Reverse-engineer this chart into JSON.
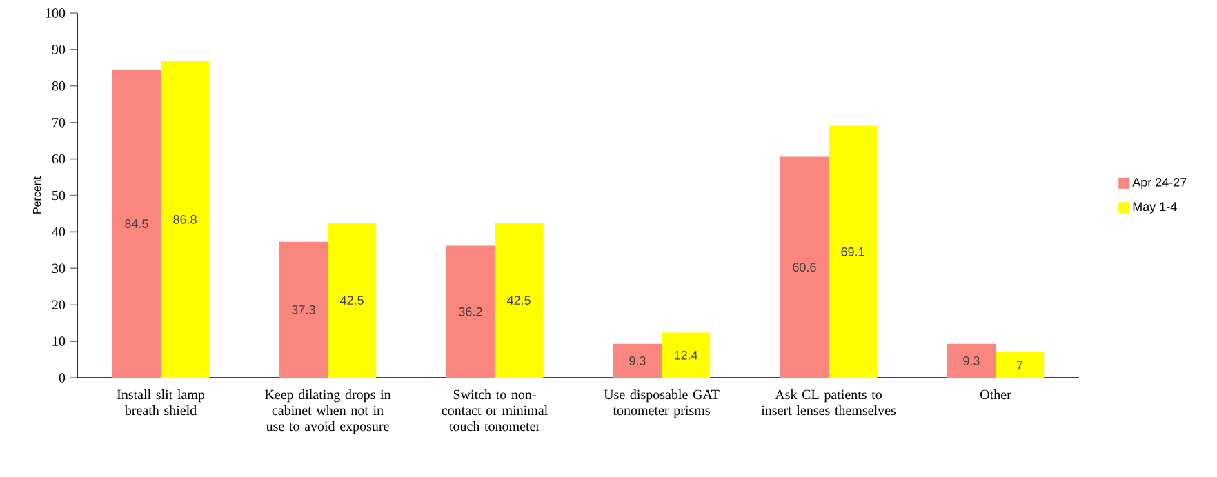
{
  "chart_data": {
    "type": "bar",
    "ylabel": "Percent",
    "categories": [
      "Install slit lamp breath shield",
      "Keep dilating drops in cabinet when not in use to avoid exposure",
      "Switch to non-contact or minimal touch tonometer",
      "Use disposable GAT tonometer prisms",
      "Ask CL patients to insert lenses themselves",
      "Other"
    ],
    "series": [
      {
        "name": "Apr 24-27",
        "color": "#f98780",
        "values": [
          84.5,
          37.3,
          36.2,
          9.3,
          60.6,
          9.3
        ]
      },
      {
        "name": "May 1-4",
        "color": "#ffff00",
        "values": [
          86.8,
          42.5,
          42.5,
          12.4,
          69.1,
          7
        ]
      }
    ],
    "ylim": [
      0,
      100
    ],
    "yticks": [
      0,
      10,
      20,
      30,
      40,
      50,
      60,
      70,
      80,
      90,
      100
    ],
    "data_labels": true,
    "legend": "right",
    "grid": false
  }
}
